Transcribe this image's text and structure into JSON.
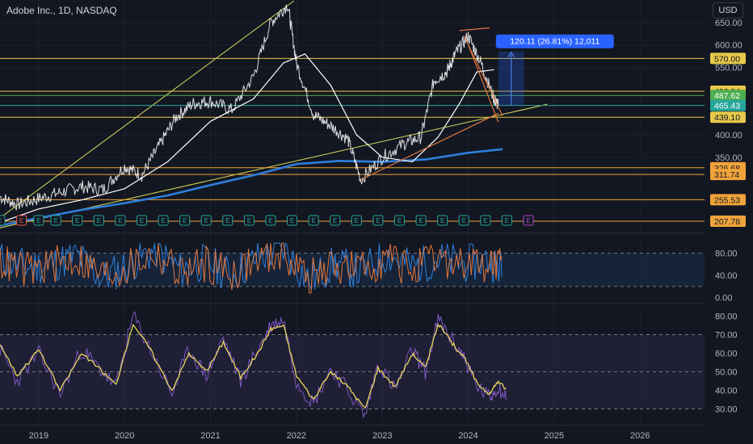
{
  "header": {
    "title": "Adobe Inc., 1D, NASDAQ",
    "currency": "USD"
  },
  "colors": {
    "background": "#131722",
    "candles": "#ffffff",
    "ma_short": "#ffffff",
    "ma_long": "#2f7fdb",
    "trendline_yellow": "#d9d95a",
    "channel_orange": "#e0763a",
    "level_yellow": "#e6c84a",
    "level_orange": "#f0a33a",
    "level_green": "#4caf50",
    "level_teal": "#26a69a",
    "measure_blue": "#2962ff",
    "stoch_blue": "#2f7fdb",
    "stoch_orange": "#e0763a",
    "rsi_purple": "#7e57c2",
    "rsi_yellow": "#e6d65a",
    "earnings_green": "#26a69a",
    "earnings_red": "#ef5350",
    "earnings_purple": "#ab47bc"
  },
  "chart_data": [
    {
      "type": "line",
      "name": "price",
      "y_axis_ticks": [
        "650.00",
        "600.00",
        "550.00",
        "400.00",
        "350.00"
      ],
      "ylim": [
        188,
        700
      ],
      "x_axis_ticks": [
        "2019",
        "2020",
        "2021",
        "2022",
        "2023",
        "2024",
        "2025",
        "2026"
      ],
      "xlim": [
        2018.55,
        2026.75
      ],
      "price_series": {
        "x": [
          2018.55,
          2018.75,
          2019.0,
          2019.25,
          2019.5,
          2019.75,
          2020.0,
          2020.2,
          2020.4,
          2020.6,
          2020.8,
          2021.0,
          2021.25,
          2021.5,
          2021.7,
          2021.9,
          2022.0,
          2022.2,
          2022.4,
          2022.6,
          2022.75,
          2023.0,
          2023.25,
          2023.45,
          2023.6,
          2023.75,
          2023.85,
          2024.0,
          2024.15,
          2024.3,
          2024.35
        ],
        "y": [
          262,
          245,
          258,
          272,
          285,
          278,
          330,
          310,
          375,
          440,
          470,
          475,
          455,
          530,
          650,
          690,
          560,
          445,
          420,
          390,
          300,
          350,
          380,
          395,
          520,
          540,
          580,
          620,
          560,
          480,
          465
        ]
      },
      "moving_average_short": {
        "x": [
          2018.55,
          2019.0,
          2019.5,
          2020.0,
          2020.5,
          2021.0,
          2021.5,
          2021.85,
          2022.1,
          2022.4,
          2022.7,
          2023.0,
          2023.35,
          2023.65,
          2023.9,
          2024.1,
          2024.3
        ],
        "y": [
          205,
          235,
          255,
          280,
          340,
          430,
          480,
          560,
          580,
          510,
          400,
          350,
          340,
          395,
          470,
          540,
          545
        ]
      },
      "moving_average_long": {
        "x": [
          2018.55,
          2019.0,
          2019.5,
          2020.0,
          2020.5,
          2021.0,
          2021.5,
          2022.0,
          2022.5,
          2023.0,
          2023.5,
          2024.0,
          2024.4
        ],
        "y": [
          198,
          215,
          233,
          248,
          265,
          288,
          310,
          335,
          342,
          340,
          345,
          360,
          368
        ]
      },
      "trendlines": [
        {
          "kind": "rising_support_upper",
          "x": [
            2018.55,
            2021.97
          ],
          "y": [
            215,
            698
          ]
        },
        {
          "kind": "rising_support_lower",
          "x": [
            2018.55,
            2024.92
          ],
          "y": [
            193,
            468
          ]
        }
      ],
      "channel": [
        {
          "x": [
            2022.75,
            2024.35
          ],
          "y": [
            300,
            448
          ]
        },
        {
          "x": [
            2023.9,
            2024.25
          ],
          "y": [
            632,
            638
          ]
        },
        {
          "x": [
            2023.95,
            2024.4
          ],
          "y": [
            620,
            442
          ]
        },
        {
          "x": [
            2024.0,
            2024.35
          ],
          "y": [
            600,
            428
          ]
        }
      ],
      "price_levels": [
        {
          "label": "570.00",
          "value": 570.0,
          "color": "#e6c84a",
          "text_color": "#131722"
        },
        {
          "label": "496.94",
          "value": 496.94,
          "color": "#e6c84a",
          "text_color": "#131722"
        },
        {
          "label": "487.62",
          "value": 487.62,
          "color": "#4caf50",
          "text_color": "#ffffff"
        },
        {
          "label": "465.43",
          "value": 465.43,
          "color": "#26a69a",
          "text_color": "#ffffff"
        },
        {
          "label": "439.10",
          "value": 439.1,
          "color": "#e6c84a",
          "text_color": "#131722"
        },
        {
          "label": "326.68",
          "value": 326.68,
          "color": "#f0a33a",
          "text_color": "#131722"
        },
        {
          "label": "311.74",
          "value": 311.74,
          "color": "#f0a33a",
          "text_color": "#131722"
        },
        {
          "label": "255.53",
          "value": 255.53,
          "color": "#f0a33a",
          "text_color": "#131722"
        },
        {
          "label": "207.78",
          "value": 207.78,
          "color": "#f0a33a",
          "text_color": "#131722"
        }
      ],
      "measure": {
        "label": "120.11 (26.81%) 12,011",
        "from": 465.43,
        "to": 585.54,
        "x": [
          2024.35,
          2024.65
        ]
      },
      "earnings_markers": {
        "labels": [
          "E",
          "E",
          "E",
          "E",
          "E",
          "E",
          "E",
          "E",
          "E",
          "E",
          "E",
          "E",
          "E",
          "E",
          "E",
          "E",
          "E",
          "E",
          "E",
          "E",
          "E",
          "E",
          "E",
          "E",
          "E",
          "E"
        ],
        "x": [
          2018.55,
          2018.8,
          2019.0,
          2019.2,
          2019.45,
          2019.7,
          2019.95,
          2020.2,
          2020.45,
          2020.7,
          2020.95,
          2021.2,
          2021.45,
          2021.7,
          2021.95,
          2022.2,
          2022.45,
          2022.7,
          2022.95,
          2023.2,
          2023.45,
          2023.7,
          2023.95,
          2024.2,
          2024.45,
          2024.7
        ],
        "kinds": [
          "teal",
          "red",
          "teal",
          "teal",
          "teal",
          "teal",
          "teal",
          "teal",
          "teal",
          "teal",
          "teal",
          "teal",
          "teal",
          "teal",
          "teal",
          "teal",
          "teal",
          "teal",
          "teal",
          "teal",
          "teal",
          "teal",
          "teal",
          "teal",
          "teal",
          "purple"
        ]
      }
    },
    {
      "type": "line",
      "name": "stochastic",
      "y_axis_ticks": [
        "80.00",
        "40.00"
      ],
      "ylim": [
        -5,
        110
      ],
      "bands": {
        "upper": 80,
        "lower": 20
      },
      "series": [
        {
          "color": "#2f7fdb",
          "x": [
            2018.55,
            2018.85,
            2019.15,
            2019.45,
            2019.75,
            2020.05,
            2020.35,
            2020.65,
            2020.95,
            2021.25,
            2021.55,
            2021.85,
            2022.15,
            2022.45,
            2022.75,
            2023.05,
            2023.35,
            2023.65,
            2023.95,
            2024.25,
            2024.4
          ],
          "y": [
            70,
            55,
            60,
            75,
            35,
            60,
            85,
            50,
            65,
            40,
            72,
            88,
            30,
            62,
            45,
            78,
            55,
            70,
            60,
            68,
            48
          ]
        },
        {
          "color": "#e0763a",
          "x": [
            2018.55,
            2018.85,
            2019.15,
            2019.45,
            2019.75,
            2020.05,
            2020.35,
            2020.65,
            2020.95,
            2021.25,
            2021.55,
            2021.85,
            2022.15,
            2022.45,
            2022.75,
            2023.05,
            2023.35,
            2023.65,
            2023.95,
            2024.25,
            2024.4
          ],
          "y": [
            65,
            48,
            58,
            70,
            40,
            55,
            80,
            45,
            62,
            45,
            68,
            82,
            35,
            58,
            50,
            72,
            50,
            66,
            58,
            62,
            52
          ]
        }
      ]
    },
    {
      "type": "line",
      "name": "rsi",
      "y_axis_ticks": [
        "80.00",
        "70.00",
        "60.00",
        "50.00",
        "40.00",
        "30.00"
      ],
      "ylim": [
        22,
        85
      ],
      "bands": {
        "upper": 70,
        "lower": 30
      },
      "series": [
        {
          "color": "#7e57c2",
          "x": [
            2018.55,
            2018.75,
            2019.0,
            2019.25,
            2019.5,
            2019.7,
            2019.9,
            2020.1,
            2020.3,
            2020.55,
            2020.75,
            2020.95,
            2021.15,
            2021.35,
            2021.55,
            2021.7,
            2021.85,
            2022.0,
            2022.2,
            2022.4,
            2022.6,
            2022.8,
            2022.95,
            2023.15,
            2023.35,
            2023.5,
            2023.65,
            2023.8,
            2023.95,
            2024.1,
            2024.25,
            2024.35,
            2024.45
          ],
          "y": [
            62,
            45,
            60,
            38,
            62,
            52,
            42,
            80,
            62,
            38,
            62,
            48,
            68,
            45,
            62,
            75,
            78,
            45,
            33,
            52,
            40,
            26,
            55,
            40,
            62,
            50,
            78,
            68,
            58,
            42,
            36,
            42,
            35
          ]
        },
        {
          "color": "#e6d65a",
          "x": [
            2018.55,
            2018.75,
            2019.0,
            2019.25,
            2019.5,
            2019.7,
            2019.9,
            2020.1,
            2020.3,
            2020.55,
            2020.75,
            2020.95,
            2021.15,
            2021.35,
            2021.55,
            2021.7,
            2021.85,
            2022.0,
            2022.2,
            2022.4,
            2022.6,
            2022.8,
            2022.95,
            2023.15,
            2023.35,
            2023.5,
            2023.65,
            2023.8,
            2023.95,
            2024.1,
            2024.25,
            2024.35,
            2024.45
          ],
          "y": [
            65,
            48,
            62,
            40,
            60,
            52,
            43,
            76,
            62,
            40,
            60,
            50,
            66,
            47,
            60,
            73,
            75,
            48,
            35,
            50,
            42,
            30,
            52,
            42,
            60,
            52,
            76,
            66,
            58,
            44,
            38,
            45,
            40
          ]
        }
      ]
    }
  ]
}
